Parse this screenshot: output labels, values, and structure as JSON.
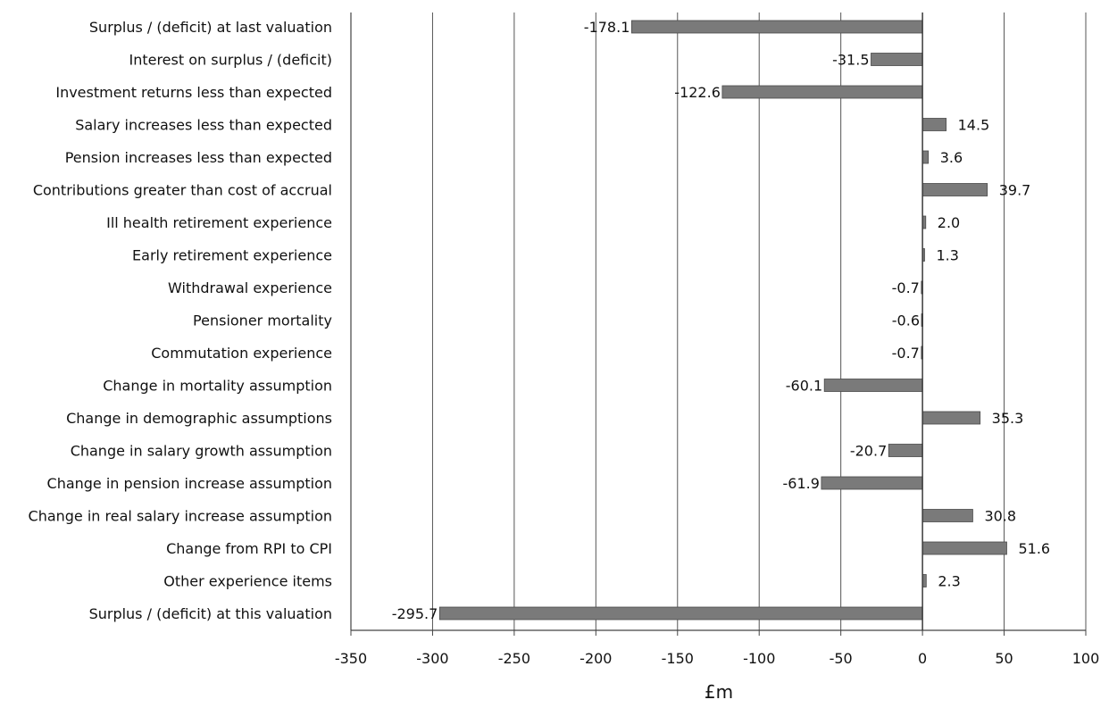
{
  "chart_data": {
    "type": "bar",
    "orientation": "horizontal",
    "title": "",
    "xlabel": "£m",
    "ylabel": "",
    "xlim": [
      -350,
      100
    ],
    "x_ticks": [
      -350,
      -300,
      -250,
      -200,
      -150,
      -100,
      -50,
      0,
      50,
      100
    ],
    "x_tick_labels": [
      "-350",
      "-300",
      "-250",
      "-200",
      "-150",
      "-100",
      "-50",
      "0",
      "50",
      "100"
    ],
    "grid": "vertical major gridlines",
    "legend": "none",
    "bar_color": "#7a7a7a",
    "categories": [
      "Surplus / (deficit) at last valuation",
      "Interest on surplus / (deficit)",
      "Investment returns less than expected",
      "Salary increases less than expected",
      "Pension increases less than expected",
      "Contributions greater than cost of accrual",
      "Ill health retirement experience",
      "Early retirement experience",
      "Withdrawal experience",
      "Pensioner mortality",
      "Commutation experience",
      "Change in mortality assumption",
      "Change in demographic assumptions",
      "Change in salary growth assumption",
      "Change in pension increase assumption",
      "Change in real salary increase assumption",
      "Change from RPI to CPI",
      "Other experience items",
      "Surplus / (deficit) at this valuation"
    ],
    "values": [
      -178.1,
      -31.5,
      -122.6,
      14.5,
      3.6,
      39.7,
      2.0,
      1.3,
      -0.7,
      -0.6,
      -0.7,
      -60.1,
      35.3,
      -20.7,
      -61.9,
      30.8,
      51.6,
      2.3,
      -295.7
    ],
    "value_labels": [
      "-178.1",
      "-31.5",
      "-122.6",
      "14.5",
      "3.6",
      "39.7",
      "2.0",
      "1.3",
      "-0.7",
      "-0.6",
      "-0.7",
      "-60.1",
      "35.3",
      "-20.7",
      "-61.9",
      "30.8",
      "51.6",
      "2.3",
      "-295.7"
    ]
  }
}
